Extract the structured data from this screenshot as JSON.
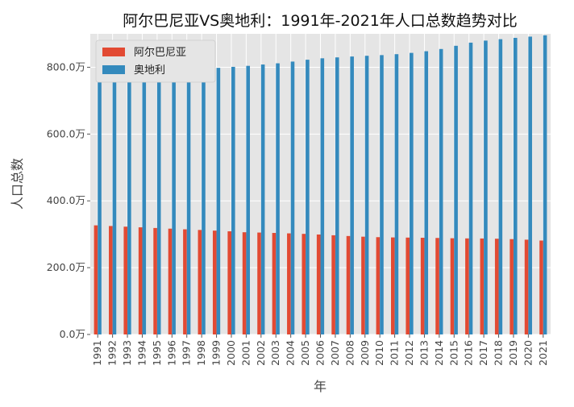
{
  "chart_data": {
    "type": "bar",
    "title": "阿尔巴尼亚VS奥地利：1991年-2021年人口总数趋势对比",
    "xlabel": "年",
    "ylabel": "人口总数",
    "ylim": [
      0,
      9000000
    ],
    "y_ticks": [
      0,
      2000000,
      4000000,
      6000000,
      8000000
    ],
    "y_tick_labels": [
      "0.0万",
      "200.0万",
      "400.0万",
      "600.0万",
      "800.0万"
    ],
    "grid": true,
    "legend_position": "top-left",
    "categories": [
      "1991",
      "1992",
      "1993",
      "1994",
      "1995",
      "1996",
      "1997",
      "1998",
      "1999",
      "2000",
      "2001",
      "2002",
      "2003",
      "2004",
      "2005",
      "2006",
      "2007",
      "2008",
      "2009",
      "2010",
      "2011",
      "2012",
      "2013",
      "2014",
      "2015",
      "2016",
      "2017",
      "2018",
      "2019",
      "2020",
      "2021"
    ],
    "series": [
      {
        "name": "阿尔巴尼亚",
        "color": "#E24A33",
        "values": [
          3266790,
          3247039,
          3227287,
          3207536,
          3187784,
          3168033,
          3148281,
          3128530,
          3108778,
          3089027,
          3060173,
          3051010,
          3039616,
          3026939,
          3011487,
          2992547,
          2970017,
          2947314,
          2927519,
          2913021,
          2905195,
          2900401,
          2895092,
          2889104,
          2880703,
          2876101,
          2873457,
          2866376,
          2854191,
          2837849,
          2811666
        ]
      },
      {
        "name": "奥地利",
        "color": "#348ABD",
        "values": [
          7777000,
          7823300,
          7882500,
          7928750,
          7943500,
          7953000,
          7964950,
          7971100,
          7982450,
          8011550,
          8042300,
          8082100,
          8118250,
          8169450,
          8225300,
          8267950,
          8295200,
          8321550,
          8343300,
          8363400,
          8391650,
          8429990,
          8479820,
          8546350,
          8642700,
          8736670,
          8797570,
          8840520,
          8879920,
          8916860,
          8956280
        ]
      }
    ]
  }
}
